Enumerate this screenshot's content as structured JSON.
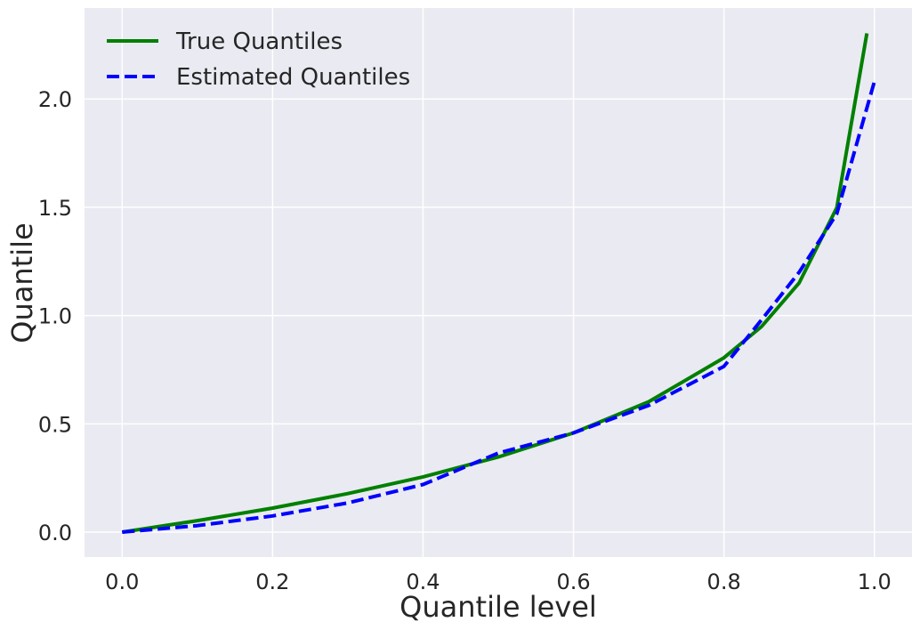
{
  "chart_data": {
    "type": "line",
    "title": "",
    "xlabel": "Quantile level",
    "ylabel": "Quantile",
    "xlim": [
      -0.05,
      1.05
    ],
    "ylim": [
      -0.115,
      2.42
    ],
    "xticks": [
      "0.0",
      "0.2",
      "0.4",
      "0.6",
      "0.8",
      "1.0"
    ],
    "yticks": [
      "0.0",
      "0.5",
      "1.0",
      "1.5",
      "2.0"
    ],
    "grid": true,
    "legend_position": "top-left",
    "background": "#eaeaf2",
    "series": [
      {
        "name": "True Quantiles",
        "color": "#008000",
        "style": "solid",
        "x": [
          0.0,
          0.1,
          0.2,
          0.3,
          0.4,
          0.5,
          0.6,
          0.7,
          0.8,
          0.85,
          0.9,
          0.95,
          0.99
        ],
        "y": [
          0.0,
          0.053,
          0.111,
          0.178,
          0.255,
          0.347,
          0.458,
          0.602,
          0.805,
          0.949,
          1.151,
          1.498,
          2.303
        ]
      },
      {
        "name": "Estimated Quantiles",
        "color": "#0000ff",
        "style": "dashed",
        "x": [
          0.0,
          0.1,
          0.2,
          0.3,
          0.4,
          0.5,
          0.6,
          0.7,
          0.8,
          0.85,
          0.9,
          0.95,
          1.0
        ],
        "y": [
          0.0,
          0.03,
          0.075,
          0.135,
          0.22,
          0.365,
          0.458,
          0.585,
          0.765,
          0.98,
          1.2,
          1.47,
          2.08
        ]
      }
    ]
  }
}
